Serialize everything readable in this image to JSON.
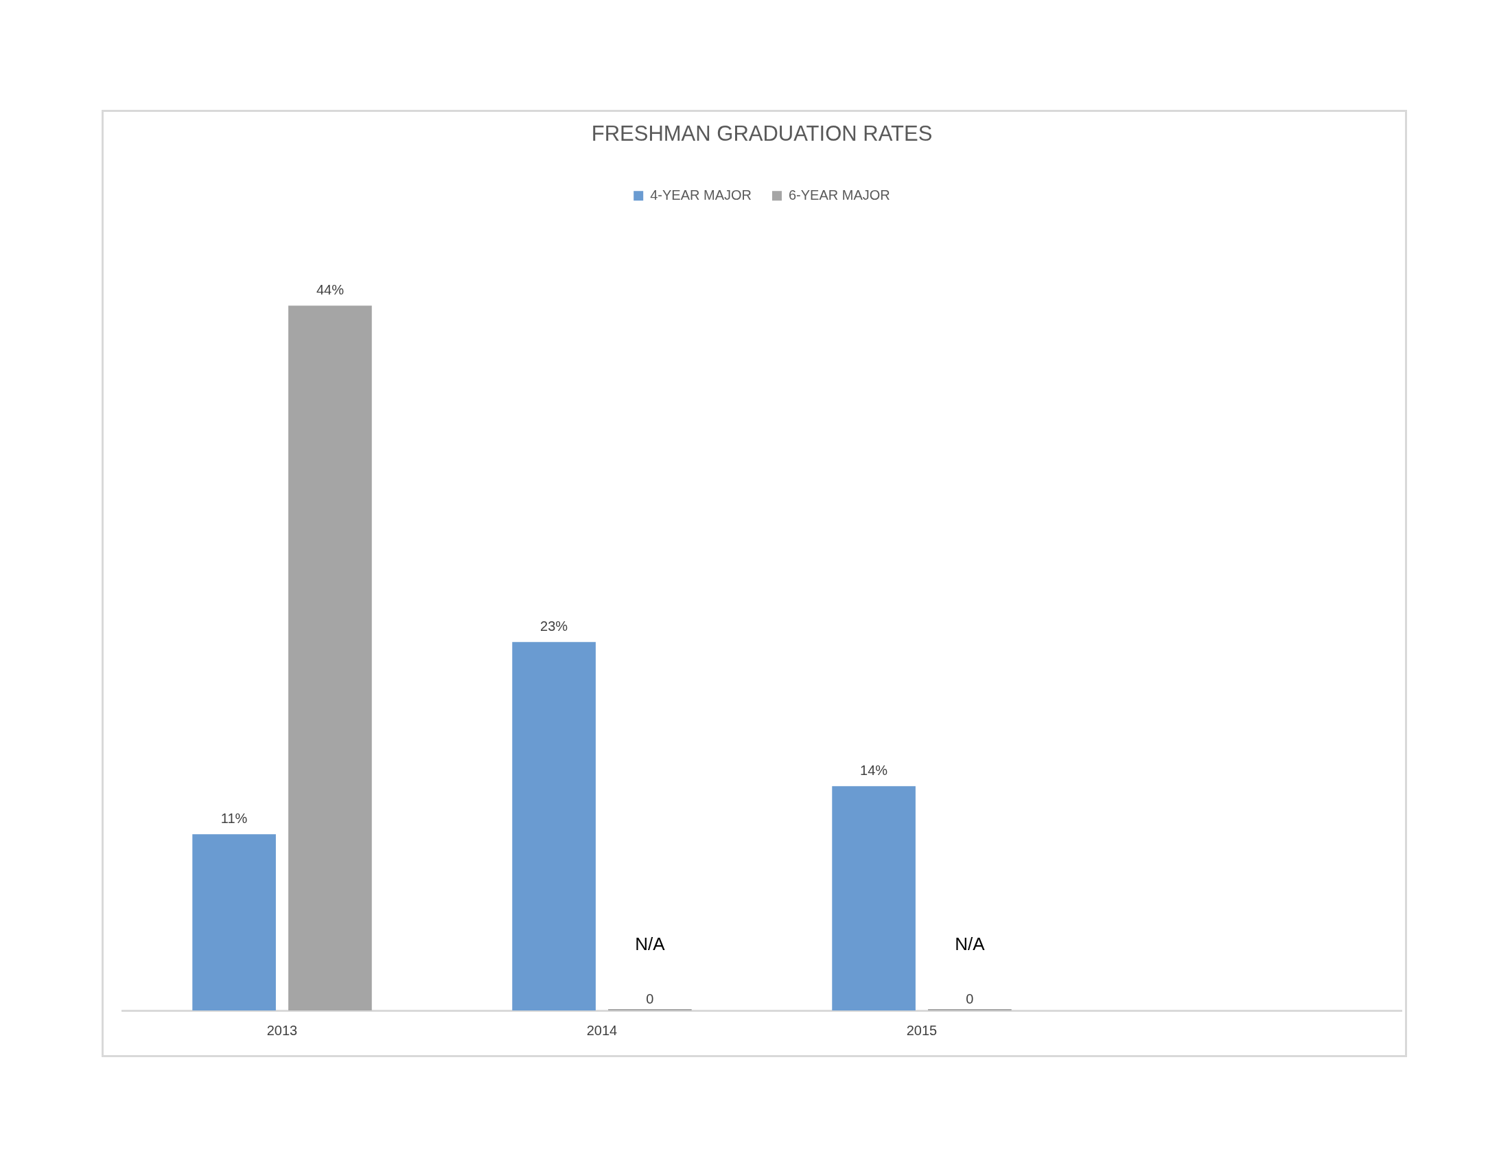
{
  "chart_data": {
    "type": "bar",
    "title": "FRESHMAN GRADUATION RATES",
    "categories": [
      "2013",
      "2014",
      "2015",
      null
    ],
    "series": [
      {
        "name": "4-YEAR MAJOR",
        "color": "#6a9bd1",
        "values": [
          11,
          23,
          14,
          null
        ],
        "value_labels": [
          "11%",
          "23%",
          "14%",
          null
        ]
      },
      {
        "name": "6-YEAR MAJOR",
        "color": "#a5a5a5",
        "values": [
          44,
          0,
          0,
          null
        ],
        "value_labels": [
          "44%",
          "0",
          "0",
          null
        ]
      }
    ],
    "annotations": [
      "N/A",
      "N/A"
    ],
    "legend": "top",
    "grid": false
  }
}
